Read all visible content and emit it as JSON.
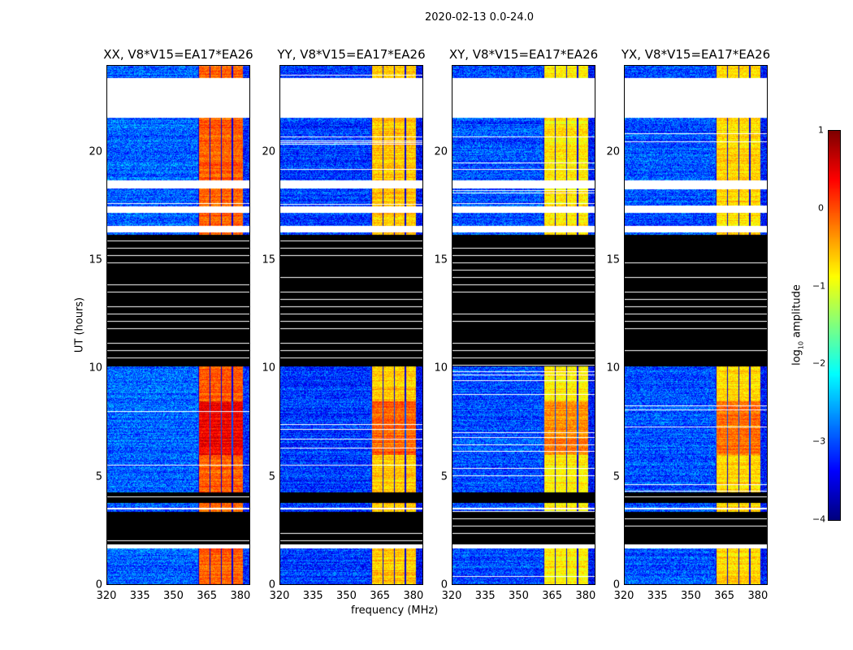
{
  "chart_data": {
    "type": "heatmap",
    "title": "2020-02-13 0.0-24.0",
    "xlabel": "frequency (MHz)",
    "ylabel": "UT (hours)",
    "xlim": [
      320,
      384.4
    ],
    "ylim": [
      0,
      24
    ],
    "xticks": [
      "320",
      "335",
      "350",
      "365",
      "380"
    ],
    "xtick_values": [
      320,
      335,
      350,
      365,
      380
    ],
    "yticks": [
      "0",
      "5",
      "10",
      "15",
      "20"
    ],
    "ytick_values": [
      0,
      5,
      10,
      15,
      20
    ],
    "colorbar": {
      "label": "log10 amplitude",
      "label_main": "log",
      "label_sub": "10",
      "label_rest": " amplitude",
      "range": [
        -4,
        1
      ],
      "ticks": [
        "1",
        "0",
        "−1",
        "−2",
        "−3",
        "−4"
      ],
      "tick_values": [
        1,
        0,
        -1,
        -2,
        -3,
        -4
      ],
      "colormap": "jet"
    },
    "panels": [
      {
        "title": "XX, V8*V15=EA17*EA26",
        "background_level": -2.9,
        "band_level": -0.1
      },
      {
        "title": "YY, V8*V15=EA17*EA26",
        "background_level": -3.1,
        "band_level": -0.6
      },
      {
        "title": "XY, V8*V15=EA17*EA26",
        "background_level": -3.0,
        "band_level": -0.8
      },
      {
        "title": "YX, V8*V15=EA17*EA26",
        "background_level": -3.0,
        "band_level": -0.7
      }
    ],
    "band_mhz": [
      361,
      381
    ],
    "flagged_hours": [
      [
        21.6,
        23.4
      ],
      [
        18.3,
        18.7
      ],
      [
        17.2,
        17.5
      ],
      [
        16.3,
        16.6
      ],
      [
        1.7,
        1.9
      ],
      [
        3.5,
        3.6
      ]
    ],
    "nodata_hours": [
      [
        10.1,
        16.2
      ],
      [
        3.8,
        4.3
      ],
      [
        1.9,
        3.4
      ]
    ]
  }
}
